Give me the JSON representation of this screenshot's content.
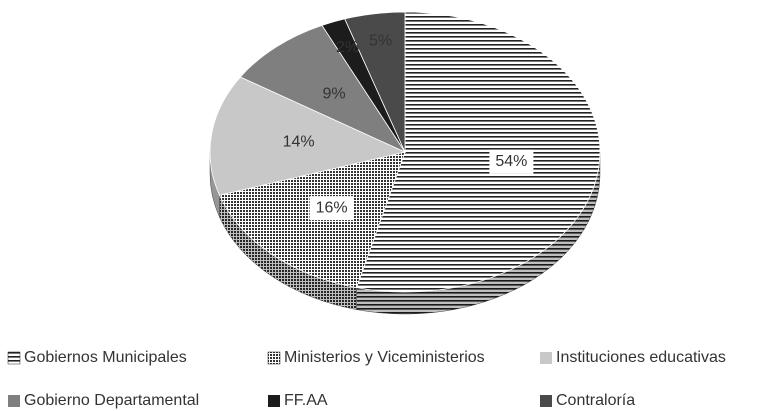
{
  "chart_data": {
    "type": "pie",
    "categories": [
      "Gobiernos Municipales",
      "Ministerios y Viceministerios",
      "Instituciones educativas",
      "Gobierno Departamental",
      "FF.AA",
      "Contraloría"
    ],
    "values": [
      54,
      16,
      14,
      9,
      2,
      5
    ],
    "value_labels": [
      "54%",
      "16%",
      "14%",
      "9%",
      "2%",
      "5%"
    ],
    "colors": [
      "#2b2b2b",
      "#3a3a3a",
      "#c8c8c8",
      "#7f7f7f",
      "#1c1c1c",
      "#4a4a4a"
    ],
    "patterns": [
      "horizontal-stripes",
      "dots",
      "solid",
      "solid",
      "solid",
      "solid"
    ],
    "legend": "bottom"
  }
}
